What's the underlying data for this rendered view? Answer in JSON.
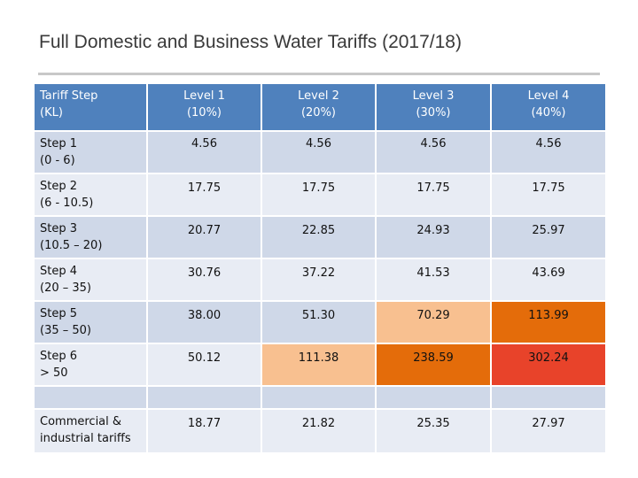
{
  "title": "Full Domestic and Business Water Tariffs (2017/18)",
  "header": {
    "col0": [
      "Tariff Step",
      "(KL)"
    ],
    "levels": [
      [
        "Level 1",
        "(10%)"
      ],
      [
        "Level 2",
        "(20%)"
      ],
      [
        "Level 3",
        "(30%)"
      ],
      [
        "Level 4",
        "(40%)"
      ]
    ]
  },
  "rows": [
    {
      "label": [
        "Step 1",
        "(0 - 6)"
      ],
      "values": [
        "4.56",
        "4.56",
        "4.56",
        "4.56"
      ]
    },
    {
      "label": [
        "Step 2",
        "(6 - 10.5)"
      ],
      "values": [
        "17.75",
        "17.75",
        "17.75",
        "17.75"
      ]
    },
    {
      "label": [
        "Step 3",
        "(10.5 – 20)"
      ],
      "values": [
        "20.77",
        "22.85",
        "24.93",
        "25.97"
      ]
    },
    {
      "label": [
        "Step 4",
        "(20 – 35)"
      ],
      "values": [
        "30.76",
        "37.22",
        "41.53",
        "43.69"
      ]
    },
    {
      "label": [
        "Step 5",
        "(35 – 50)"
      ],
      "values": [
        "38.00",
        "51.30",
        "70.29",
        "113.99"
      ]
    },
    {
      "label": [
        "Step 6",
        "> 50"
      ],
      "values": [
        "50.12",
        "111.38",
        "238.59",
        "302.24"
      ]
    },
    {
      "label": [
        "",
        ""
      ],
      "values": [
        "",
        "",
        "",
        ""
      ]
    },
    {
      "label": [
        "Commercial &",
        "industrial tariffs"
      ],
      "values": [
        "18.77",
        "21.82",
        "25.35",
        "27.97"
      ]
    }
  ],
  "highlight_colors": {
    "light_orange": "#f8c090",
    "orange": "#e46c0a",
    "red": "#e8432a"
  }
}
